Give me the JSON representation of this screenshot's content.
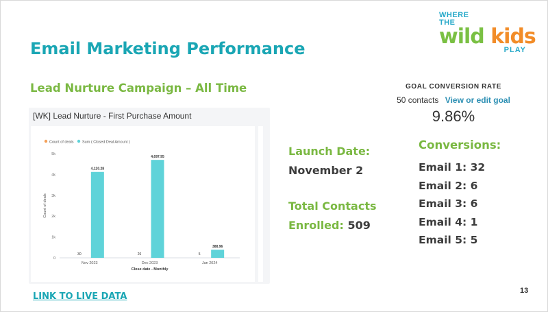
{
  "logo": {
    "line1": "WHERE",
    "line2": "THE",
    "word1": "wild",
    "word2": "kids",
    "line3": "PLAY"
  },
  "title": "Email Marketing Performance",
  "subtitle": "Lead Nurture Campaign – All Time",
  "chart_card": {
    "title": "[WK] Lead Nurture - First Purchase Amount"
  },
  "chart_data": {
    "type": "bar",
    "categories": [
      "Nov 2023",
      "Dec 2023",
      "Jan 2024"
    ],
    "series": [
      {
        "name": "Count of deals",
        "values": [
          30,
          26,
          5
        ],
        "labels": [
          "30",
          "26",
          "5"
        ],
        "color": "#f5a15a"
      },
      {
        "name": "Sum ( Closed Deal Amount )",
        "values": [
          4120.28,
          4697.95,
          388.96
        ],
        "labels": [
          "4,120.28",
          "4,697.95",
          "388.96"
        ],
        "color": "#5fd3d9"
      }
    ],
    "xlabel": "Close date - Monthly",
    "ylabel": "Count of deals",
    "yticks": [
      "0",
      "1k",
      "2k",
      "3k",
      "4k",
      "5k"
    ],
    "ylim": [
      0,
      5000
    ],
    "legend": "top-left",
    "grid": false
  },
  "launch": {
    "label": "Launch Date:",
    "value": "November 2"
  },
  "contacts": {
    "label1": "Total Contacts",
    "label2": "Enrolled:",
    "value": "509"
  },
  "goal": {
    "label": "GOAL CONVERSION RATE",
    "contacts": "50 contacts",
    "link": "View or edit goal",
    "rate": "9.86%"
  },
  "conversions": {
    "title": "Conversions:",
    "items": [
      "Email 1: 32",
      "Email 2: 6",
      "Email 3: 6",
      "Email 4: 1",
      "Email 5: 5"
    ]
  },
  "link_live": "LINK TO LIVE DATA",
  "page_number": "13",
  "colors": {
    "teal": "#1aa6b4",
    "green": "#7ab842",
    "bar": "#5fd3d9",
    "dot_count": "#f5a15a"
  }
}
